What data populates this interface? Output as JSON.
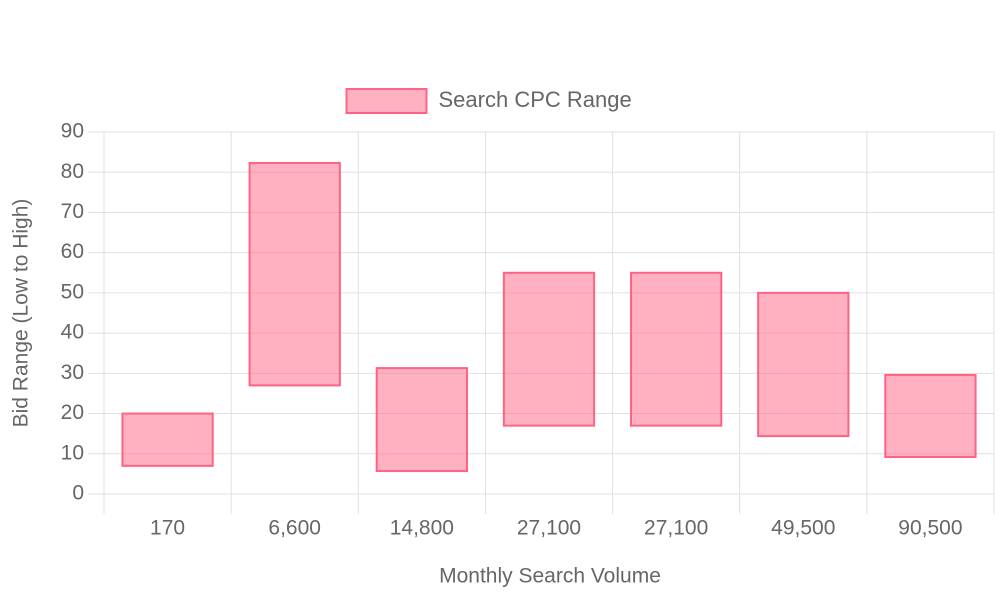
{
  "chart_data": {
    "type": "floating-bar",
    "x_label": "Monthly Search Volume",
    "y_label": "Bid Range (Low to High)",
    "categories": [
      "170",
      "6,600",
      "14,800",
      "27,100",
      "27,100",
      "49,500",
      "90,500"
    ],
    "series": [
      {
        "name": "Search CPC Range",
        "color": "#ff6384",
        "values": [
          [
            7,
            20
          ],
          [
            27,
            82.3
          ],
          [
            5.7,
            31.3
          ],
          [
            17,
            55
          ],
          [
            17,
            55
          ],
          [
            14.4,
            50
          ],
          [
            9.2,
            29.6
          ]
        ]
      }
    ],
    "ylim": [
      0,
      90
    ],
    "yticks": [
      0,
      10,
      20,
      30,
      40,
      50,
      60,
      70,
      80,
      90
    ],
    "grid": true,
    "legend": "top"
  }
}
